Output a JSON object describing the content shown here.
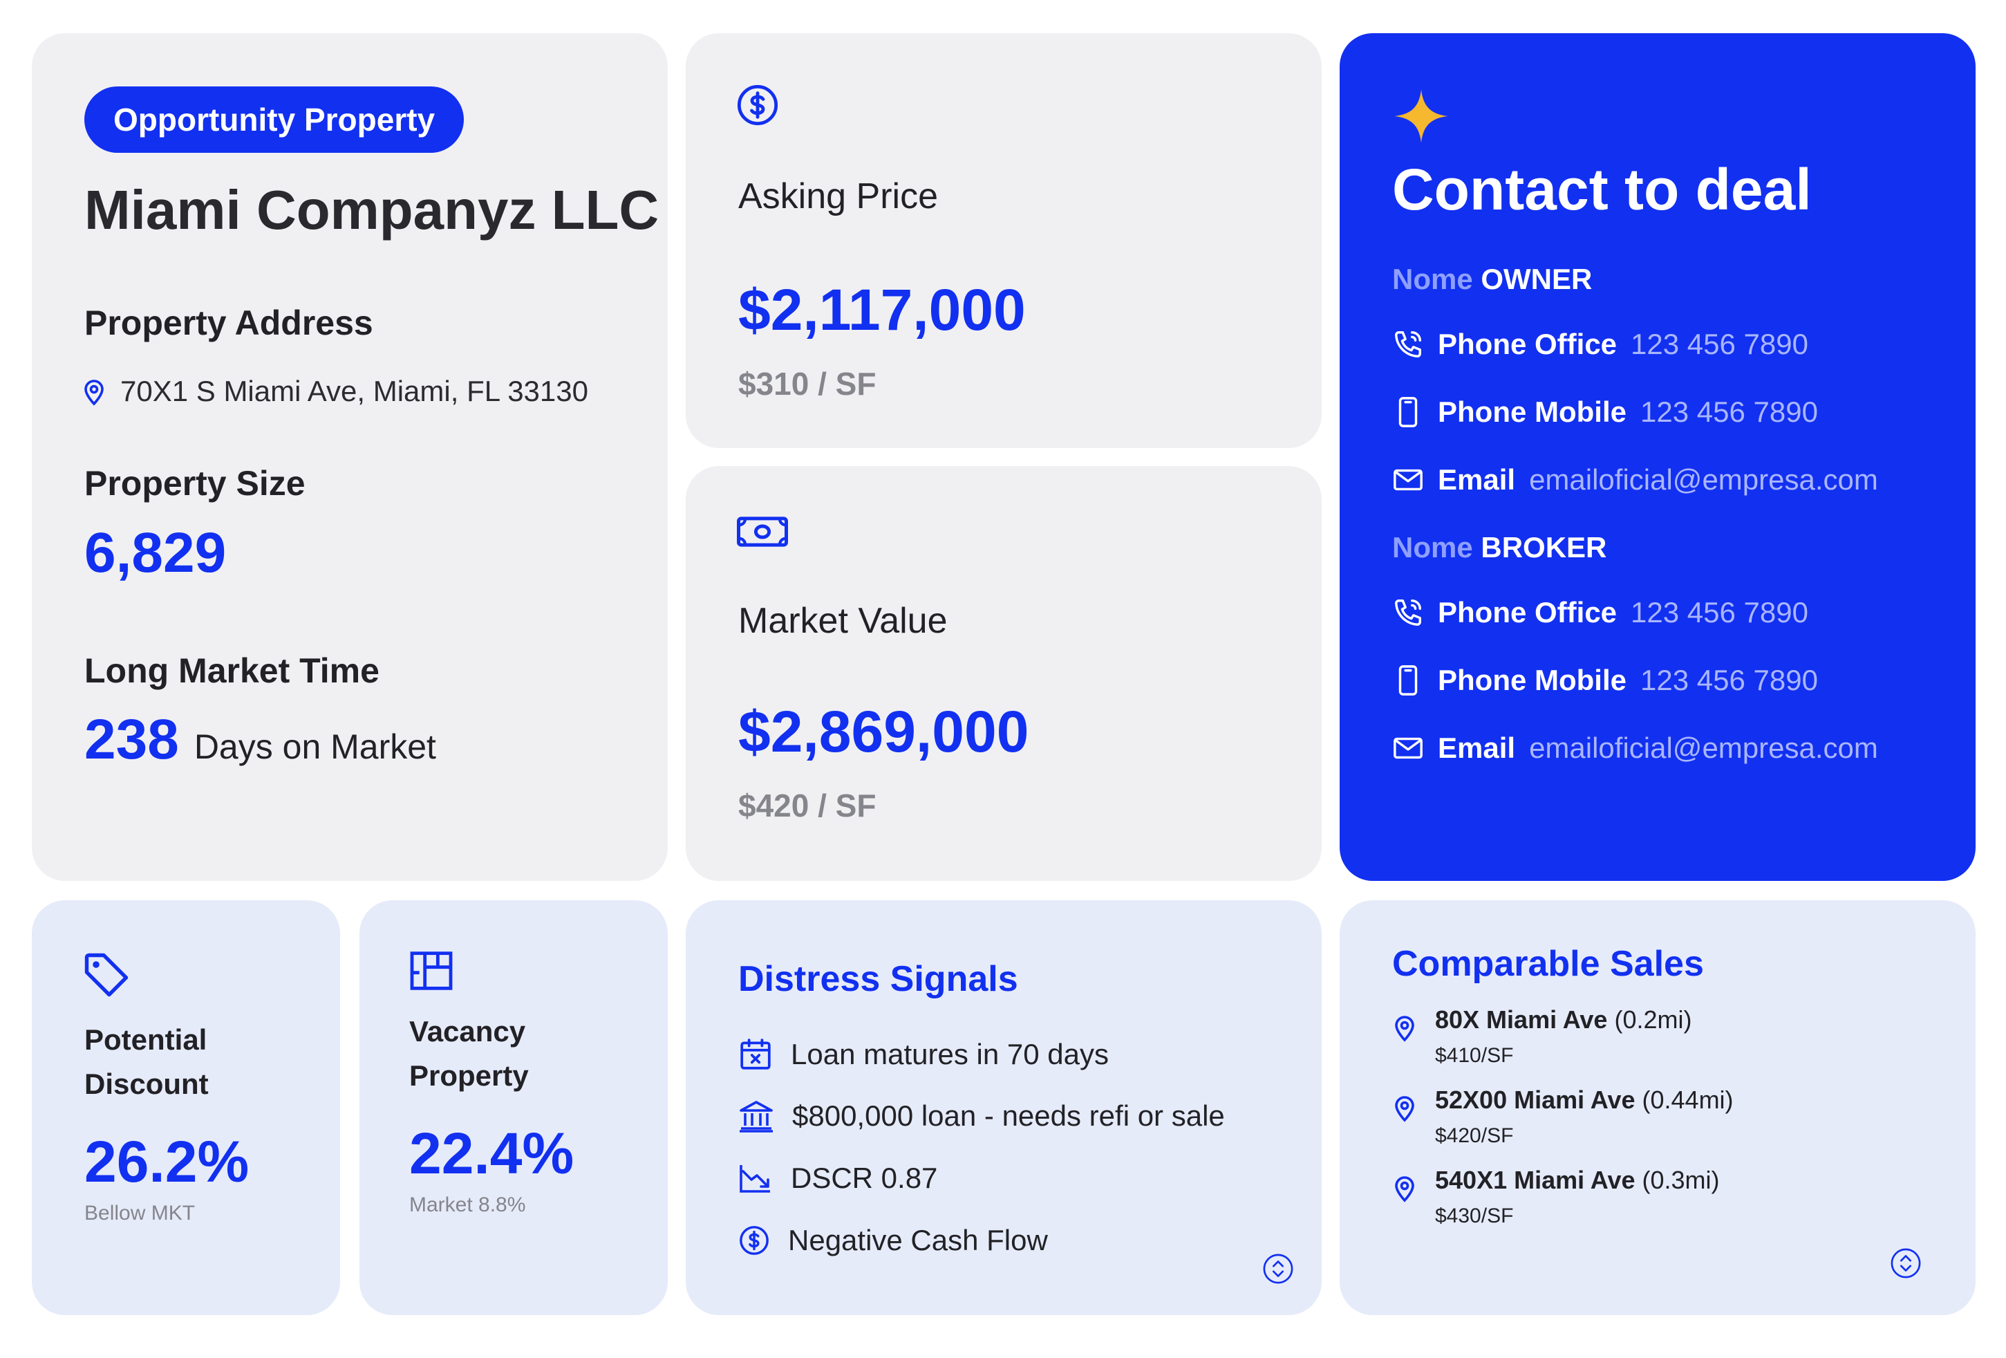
{
  "colors": {
    "accent": "#1230f0",
    "card_gray": "#f0f0f3",
    "card_light": "#e6ebfa",
    "star": "#f5b82e"
  },
  "property": {
    "badge": "Opportunity Property",
    "company": "Miami Companyz LLC",
    "address_label": "Property Address",
    "address": "70X1 S Miami Ave, Miami, FL 33130",
    "size_label": "Property Size",
    "size_value": "6,829",
    "market_time_label": "Long Market Time",
    "market_time_value": "238",
    "market_time_unit": "Days on Market"
  },
  "asking": {
    "icon": "dollar-circle-icon",
    "label": "Asking Price",
    "value": "$2,117,000",
    "per_sf": "$310 / SF"
  },
  "market": {
    "icon": "cash-icon",
    "label": "Market Value",
    "value": "$2,869,000",
    "per_sf": "$420 / SF"
  },
  "contact": {
    "title": "Contact to deal",
    "owner": {
      "prefix": "Nome",
      "name": "OWNER",
      "phone_office_label": "Phone Office",
      "phone_office": "123 456 7890",
      "phone_mobile_label": "Phone Mobile",
      "phone_mobile": "123 456 7890",
      "email_label": "Email",
      "email": "emailoficial@empresa.com"
    },
    "broker": {
      "prefix": "Nome",
      "name": "BROKER",
      "phone_office_label": "Phone Office",
      "phone_office": "123 456 7890",
      "phone_mobile_label": "Phone Mobile",
      "phone_mobile": "123 456 7890",
      "email_label": "Email",
      "email": "emailoficial@empresa.com"
    }
  },
  "discount": {
    "icon": "tag-icon",
    "label": "Potential Discount",
    "value": "26.2%",
    "sub": "Bellow MKT"
  },
  "vacancy": {
    "icon": "floorplan-icon",
    "label": "Vacancy Property",
    "value": "22.4%",
    "sub": "Market 8.8%"
  },
  "distress": {
    "title": "Distress Signals",
    "items": [
      {
        "icon": "calendar-x-icon",
        "text": "Loan matures in 70 days"
      },
      {
        "icon": "bank-icon",
        "text": "$800,000 loan - needs refi or sale"
      },
      {
        "icon": "trending-down-icon",
        "text": "DSCR 0.87"
      },
      {
        "icon": "dollar-circle-icon",
        "text": "Negative Cash Flow"
      }
    ]
  },
  "comps": {
    "title": "Comparable Sales",
    "items": [
      {
        "name": "80X Miami Ave",
        "dist": "(0.2mi)",
        "price": "$410/SF"
      },
      {
        "name": "52X00 Miami Ave",
        "dist": "(0.44mi)",
        "price": "$420/SF"
      },
      {
        "name": "540X1 Miami Ave",
        "dist": "(0.3mi)",
        "price": "$430/SF"
      }
    ]
  }
}
